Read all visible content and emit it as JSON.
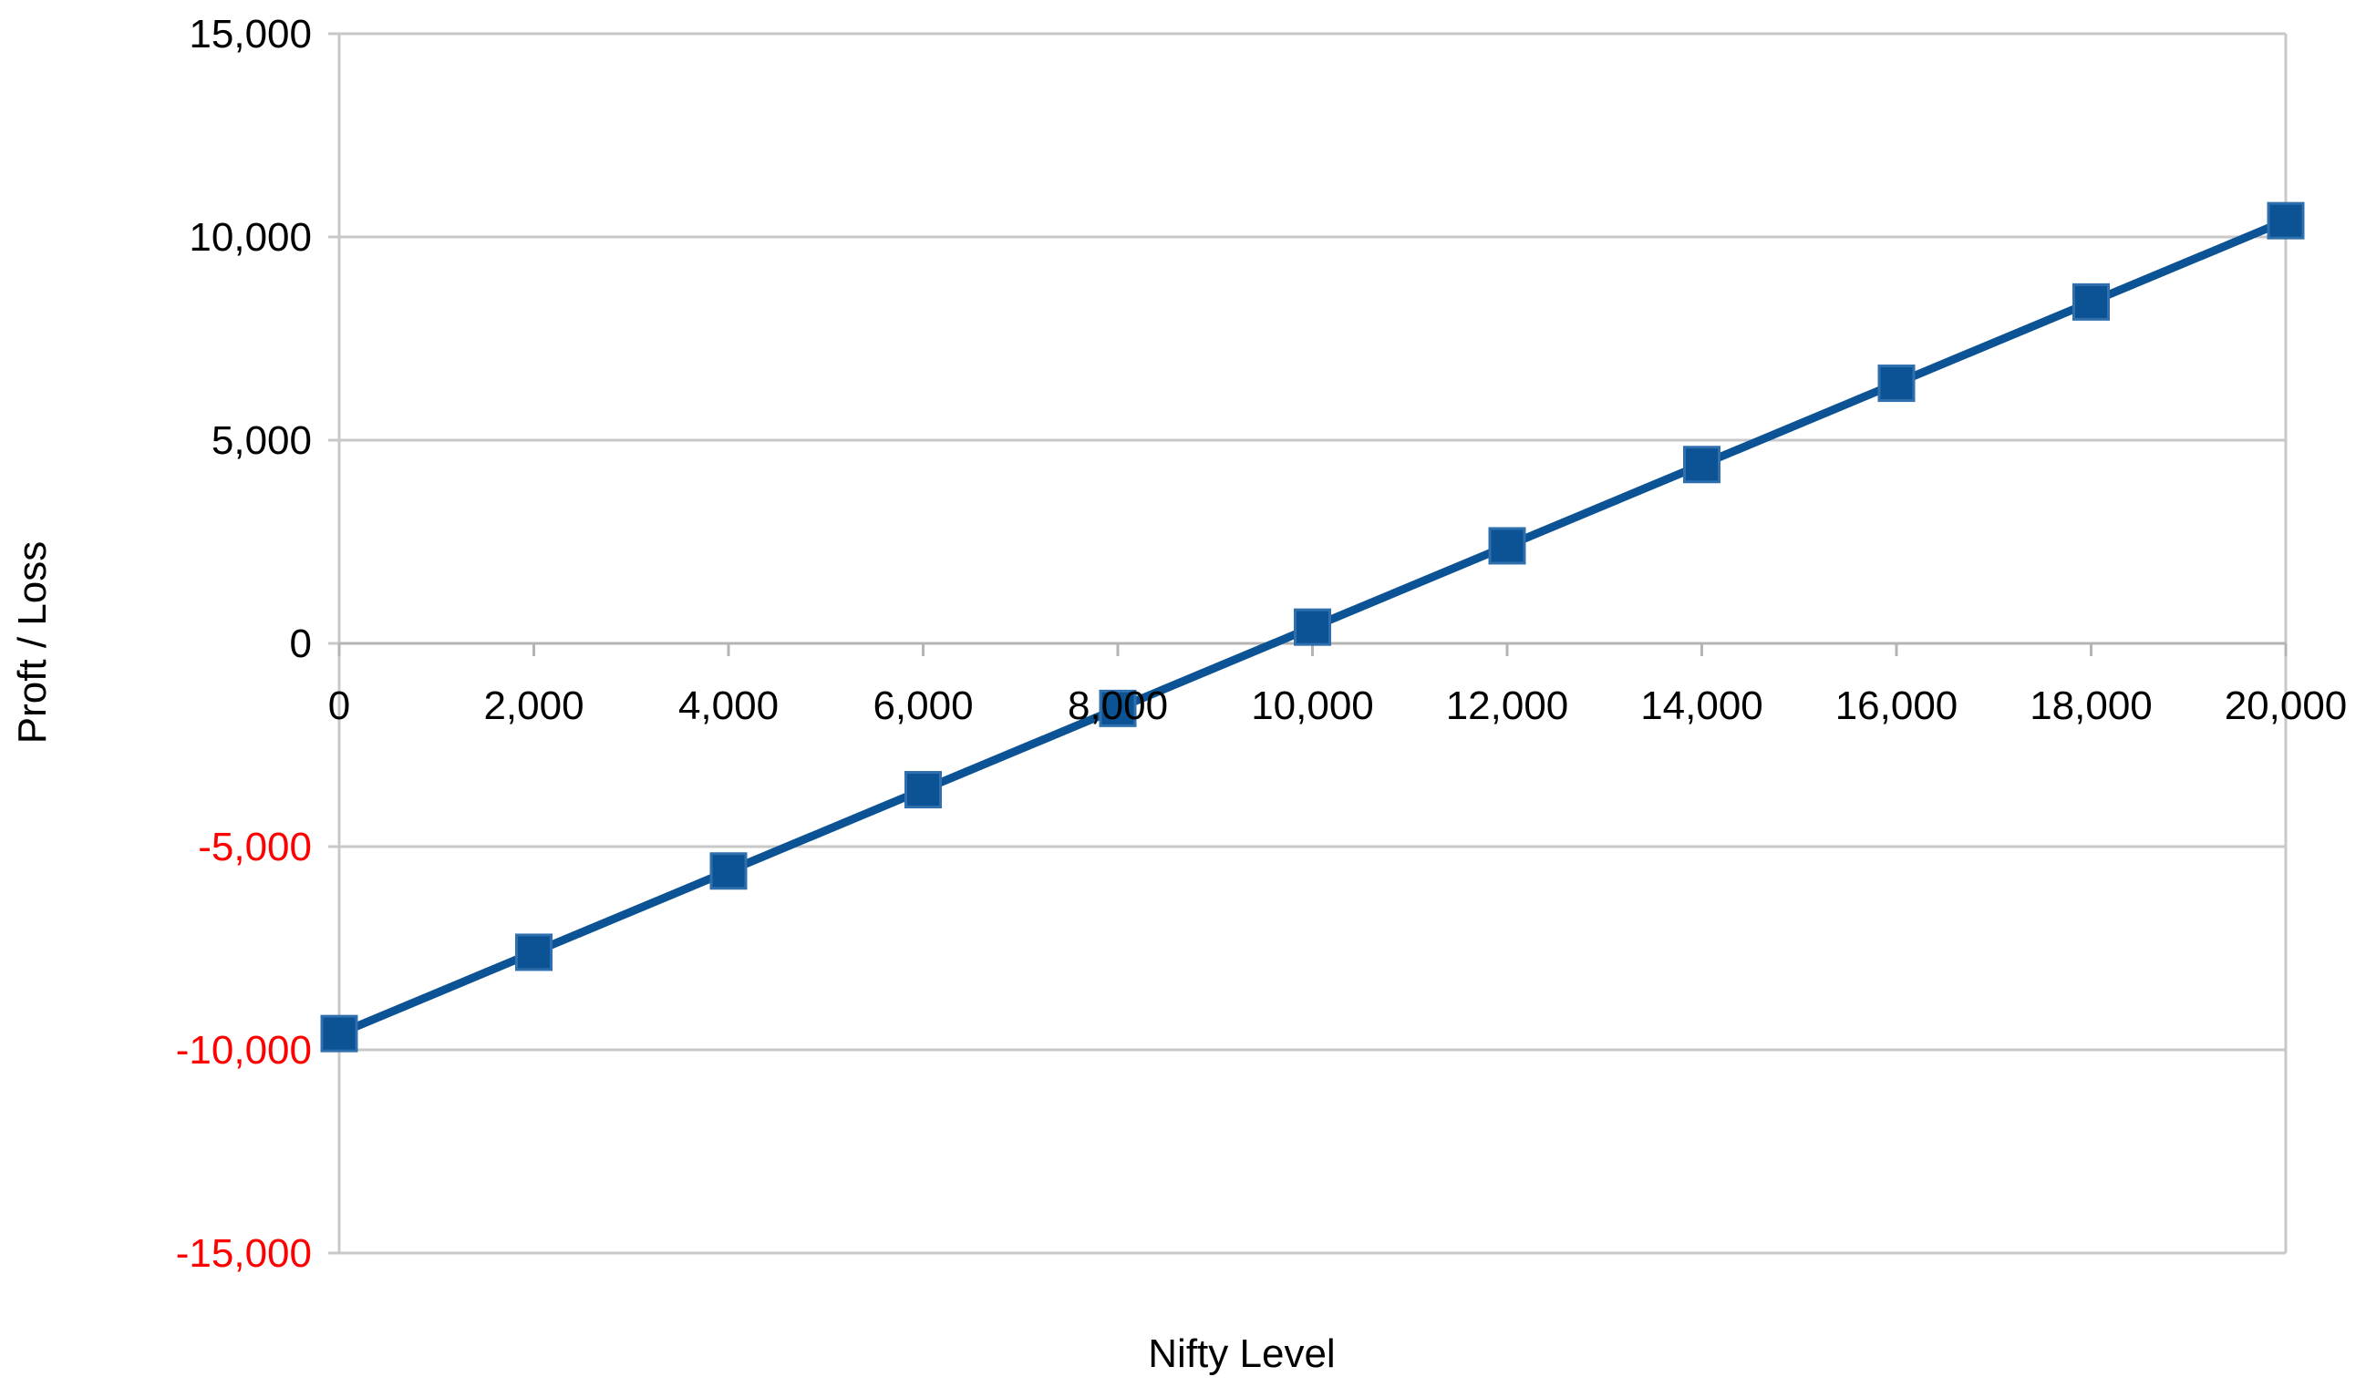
{
  "chart_data": {
    "type": "line",
    "title": "",
    "xlabel": "Nifty Level",
    "ylabel": "Proft / Loss",
    "xlim": [
      0,
      20000
    ],
    "ylim": [
      -15000,
      15000
    ],
    "x_ticks": [
      0,
      2000,
      4000,
      6000,
      8000,
      10000,
      12000,
      14000,
      16000,
      18000,
      20000
    ],
    "x_tick_labels": [
      "0",
      "2,000",
      "4,000",
      "6,000",
      "8,000",
      "10,000",
      "12,000",
      "14,000",
      "16,000",
      "18,000",
      "20,000"
    ],
    "y_ticks": [
      15000,
      10000,
      5000,
      0,
      -5000,
      -10000,
      -15000
    ],
    "y_tick_labels": [
      "15,000",
      "10,000",
      "5,000",
      "0",
      "-5,000",
      "-10,000",
      "-15,000"
    ],
    "negative_tick_color": "#ff0000",
    "positive_tick_color": "#000000",
    "grid": true,
    "legend": "none",
    "series": [
      {
        "color": "#0b5394",
        "marker": "square",
        "x": [
          0,
          2000,
          4000,
          6000,
          8000,
          10000,
          12000,
          14000,
          16000,
          18000,
          20000
        ],
        "y": [
          -9600,
          -7600,
          -5600,
          -3600,
          -1600,
          400,
          2400,
          4400,
          6400,
          8400,
          10400
        ]
      }
    ]
  }
}
